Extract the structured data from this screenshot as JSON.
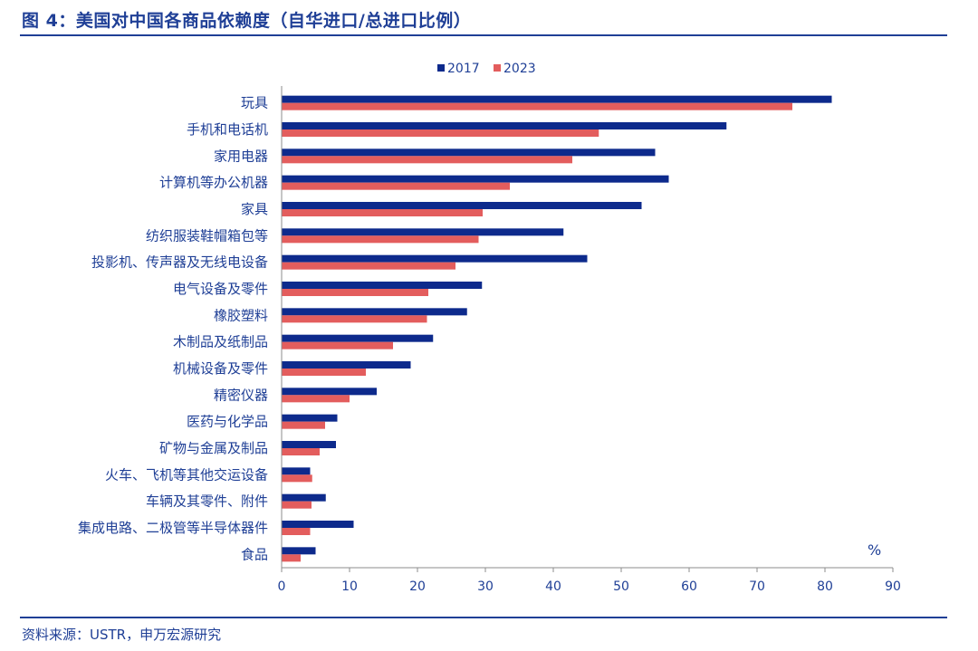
{
  "header": {
    "title": "图 4：美国对中国各商品依赖度（自华进口/总进口比例）"
  },
  "footer": {
    "source": "资料来源：USTR，申万宏源研究"
  },
  "colors": {
    "series_2017": "#0d2a8c",
    "series_2023": "#e35d5d",
    "text": "#1f3f96",
    "axis": "#8c8c8c"
  },
  "chart_data": {
    "type": "bar",
    "orientation": "horizontal",
    "title": "",
    "xlabel": "",
    "unit_label": "%",
    "xlim": [
      0,
      90
    ],
    "xticks": [
      0,
      10,
      20,
      30,
      40,
      50,
      60,
      70,
      80,
      90
    ],
    "legend_position": "top-center",
    "categories": [
      "玩具",
      "手机和电话机",
      "家用电器",
      "计算机等办公机器",
      "家具",
      "纺织服装鞋帽箱包等",
      "投影机、传声器及无线电设备",
      "电气设备及零件",
      "橡胶塑料",
      "木制品及纸制品",
      "机械设备及零件",
      "精密仪器",
      "医药与化学品",
      "矿物与金属及制品",
      "火车、飞机等其他交运设备",
      "车辆及其零件、附件",
      "集成电路、二极管等半导体器件",
      "食品"
    ],
    "series": [
      {
        "name": "2017",
        "values": [
          81,
          65.5,
          55,
          57,
          53,
          41.5,
          45,
          29.5,
          27.3,
          22.3,
          19,
          14,
          8.2,
          8,
          4.2,
          6.5,
          10.6,
          5
        ]
      },
      {
        "name": "2023",
        "values": [
          75.2,
          46.7,
          42.8,
          33.6,
          29.6,
          29,
          25.6,
          21.6,
          21.4,
          16.4,
          12.4,
          10,
          6.4,
          5.6,
          4.5,
          4.4,
          4.2,
          2.8
        ]
      }
    ]
  }
}
